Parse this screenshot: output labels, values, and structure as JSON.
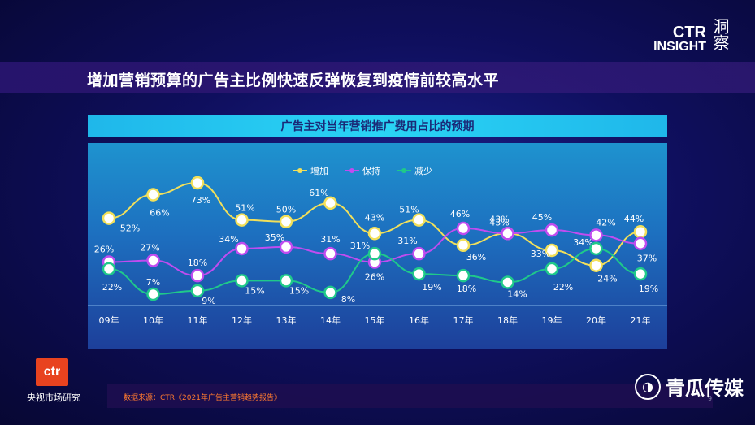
{
  "header": {
    "logo_ctr": "CTR",
    "logo_insight": "INSIGHT",
    "logo_cn": "洞察",
    "page_title": "增加营销预算的广告主比例快速反弹恢复到疫情前较高水平"
  },
  "chart_data": {
    "type": "line",
    "title": "广告主对当年营销推广费用占比的预期",
    "categories": [
      "09年",
      "10年",
      "11年",
      "12年",
      "13年",
      "14年",
      "15年",
      "16年",
      "17年",
      "18年",
      "19年",
      "20年",
      "21年"
    ],
    "series": [
      {
        "name": "增加",
        "color": "#f2e05a",
        "values": [
          52,
          66,
          73,
          51,
          50,
          61,
          43,
          51,
          36,
          43,
          33,
          24,
          44
        ]
      },
      {
        "name": "保持",
        "color": "#c04cf0",
        "values": [
          26,
          27,
          18,
          34,
          35,
          31,
          26,
          31,
          46,
          43,
          45,
          42,
          37
        ]
      },
      {
        "name": "减少",
        "color": "#1fc98a",
        "values": [
          22,
          7,
          9,
          15,
          15,
          8,
          31,
          19,
          18,
          14,
          22,
          34,
          19
        ]
      }
    ],
    "legend_position": "top-center",
    "ylim": [
      0,
      80
    ],
    "grid": false
  },
  "footer": {
    "company_logo": "ctr",
    "company_name": "央视市场研究",
    "source": "数据来源：CTR《2021年广告主营销趋势报告》",
    "page_number": "9",
    "brand": "青瓜传媒"
  }
}
